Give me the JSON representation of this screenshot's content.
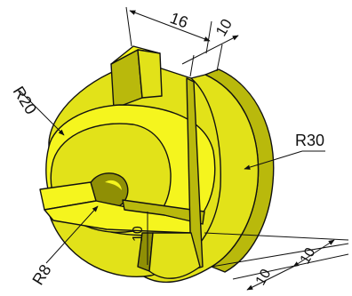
{
  "drawing": {
    "dimensions": {
      "width_top": "16",
      "slot_top": "10",
      "radius_outer": "R30",
      "radius_hub": "R20",
      "radius_bore": "R8",
      "slot_height": "10",
      "thickness_rear": "10",
      "thickness_front": "10"
    },
    "colors": {
      "face_light": "#f5f51e",
      "face_mid": "#e2e219",
      "face_dark": "#b9b90c",
      "face_shadow": "#8f8f05",
      "edge": "#111111",
      "background": "#ffffff"
    }
  }
}
